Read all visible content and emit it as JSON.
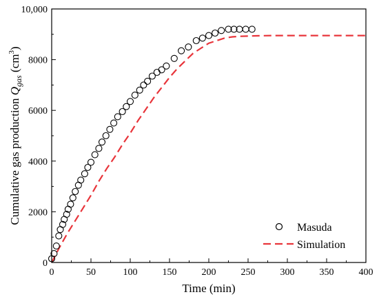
{
  "chart_data": {
    "type": "scatter",
    "xlabel": "Time (min)",
    "ylabel_main": "Cumulative gas production ",
    "ylabel_symbol": "Q",
    "ylabel_subscript": "gas",
    "ylabel_unit_open": " (cm",
    "ylabel_unit_exp": "3",
    "ylabel_unit_close": ")",
    "xlim": [
      0,
      400
    ],
    "ylim": [
      0,
      10000
    ],
    "x_ticks": [
      0,
      50,
      100,
      150,
      200,
      250,
      300,
      350,
      400
    ],
    "y_ticks": [
      0,
      2000,
      4000,
      6000,
      8000,
      10000
    ],
    "y_tick_labels": [
      "0",
      "2000",
      "4000",
      "6000",
      "8000",
      "10,000"
    ],
    "grid": false,
    "legend_position": "bottom-right",
    "series": [
      {
        "name": "Masuda",
        "style": "open-circle",
        "color": "#000000",
        "x": [
          0,
          3,
          6,
          9,
          11,
          14,
          16,
          19,
          21,
          24,
          27,
          30,
          34,
          37,
          42,
          46,
          50,
          55,
          60,
          64,
          69,
          74,
          79,
          84,
          90,
          95,
          100,
          106,
          112,
          117,
          122,
          128,
          134,
          140,
          146,
          156,
          165,
          174,
          184,
          192,
          200,
          208,
          216,
          225,
          232,
          239,
          247,
          255
        ],
        "y": [
          150,
          350,
          650,
          1050,
          1300,
          1500,
          1700,
          1900,
          2100,
          2300,
          2550,
          2800,
          3050,
          3250,
          3500,
          3750,
          3950,
          4250,
          4500,
          4750,
          5000,
          5250,
          5500,
          5750,
          5950,
          6150,
          6350,
          6600,
          6800,
          7000,
          7150,
          7350,
          7500,
          7600,
          7750,
          8050,
          8350,
          8500,
          8750,
          8850,
          8950,
          9050,
          9150,
          9200,
          9200,
          9200,
          9200,
          9200
        ]
      },
      {
        "name": "Simulation",
        "style": "dashed-line",
        "color": "#e8343a",
        "x": [
          0,
          10,
          20,
          30,
          40,
          50,
          60,
          70,
          80,
          90,
          100,
          110,
          120,
          130,
          140,
          150,
          160,
          170,
          180,
          190,
          200,
          210,
          220,
          230,
          240,
          250,
          260,
          280,
          300,
          350,
          400
        ],
        "y": [
          0,
          600,
          1150,
          1650,
          2150,
          2650,
          3200,
          3700,
          4150,
          4650,
          5100,
          5600,
          6050,
          6500,
          6900,
          7300,
          7650,
          7950,
          8250,
          8450,
          8650,
          8750,
          8850,
          8900,
          8920,
          8930,
          8940,
          8950,
          8950,
          8950,
          8950
        ]
      }
    ]
  }
}
